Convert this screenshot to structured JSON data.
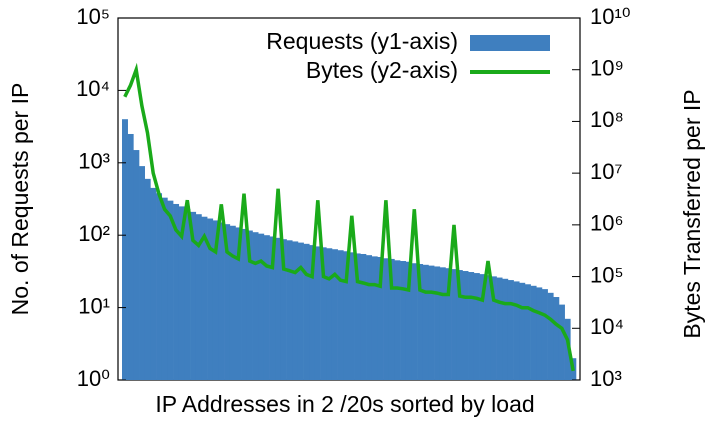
{
  "chart_data": {
    "type": "bar-line",
    "xlabel": "IP Addresses in 2 /20s sorted by load",
    "ylabel": "No. of Requests per IP",
    "y2label": "Bytes Transferred per IP",
    "log_scale": true,
    "legend": "upper right",
    "ylim": [
      1,
      100000
    ],
    "yticks": [
      {
        "value": 1,
        "label": "10⁰"
      },
      {
        "value": 10,
        "label": "10¹"
      },
      {
        "value": 100,
        "label": "10²"
      },
      {
        "value": 1000,
        "label": "10³"
      },
      {
        "value": 10000,
        "label": "10⁴"
      },
      {
        "value": 100000,
        "label": "10⁵"
      }
    ],
    "y2lim": [
      1000,
      10000000000
    ],
    "y2ticks": [
      {
        "value": 1000,
        "label": "10³"
      },
      {
        "value": 10000,
        "label": "10⁴"
      },
      {
        "value": 100000,
        "label": "10⁵"
      },
      {
        "value": 1000000,
        "label": "10⁶"
      },
      {
        "value": 10000000,
        "label": "10⁷"
      },
      {
        "value": 100000000,
        "label": "10⁸"
      },
      {
        "value": 1000000000,
        "label": "10⁹"
      },
      {
        "value": 10000000000,
        "label": "10¹⁰"
      }
    ],
    "series": [
      {
        "name": "Requests (y1-axis)",
        "color": "#3f7fbf",
        "kind": "bar",
        "values": [
          4000,
          2500,
          1500,
          900,
          600,
          450,
          380,
          330,
          300,
          270,
          250,
          230,
          210,
          195,
          180,
          170,
          160,
          150,
          142,
          135,
          128,
          122,
          116,
          110,
          105,
          100,
          96,
          92,
          88,
          85,
          82,
          79,
          76,
          73,
          70,
          68,
          66,
          64,
          62,
          60,
          58,
          56,
          55,
          53,
          51,
          50,
          48,
          47,
          45,
          44,
          43,
          41,
          40,
          39,
          38,
          37,
          36,
          35,
          34,
          33,
          32,
          31,
          30,
          29,
          28,
          27,
          26,
          25,
          24,
          23,
          22,
          21,
          20,
          19,
          18,
          16,
          14,
          11,
          7,
          2
        ]
      },
      {
        "name": "Bytes (y2-axis)",
        "color": "#1aaa1a",
        "kind": "line",
        "axis": "y2",
        "values": [
          300000000,
          500000000,
          1000000000,
          200000000,
          60000000,
          10000000,
          4000000,
          2000000,
          1500000,
          800000,
          600000,
          3000000,
          500000,
          400000,
          600000,
          350000,
          300000,
          2500000,
          300000,
          250000,
          220000,
          4000000,
          200000,
          180000,
          200000,
          160000,
          150000,
          5000000,
          140000,
          130000,
          120000,
          150000,
          110000,
          100000,
          3000000,
          100000,
          90000,
          110000,
          85000,
          80000,
          1500000,
          80000,
          75000,
          70000,
          70000,
          65000,
          3000000,
          60000,
          60000,
          58000,
          55000,
          2000000,
          55000,
          50000,
          50000,
          48000,
          45000,
          45000,
          1000000,
          42000,
          40000,
          40000,
          38000,
          35000,
          200000,
          35000,
          32000,
          30000,
          30000,
          28000,
          25000,
          25000,
          22000,
          20000,
          18000,
          15000,
          12000,
          10000,
          6000,
          1500
        ]
      }
    ]
  }
}
